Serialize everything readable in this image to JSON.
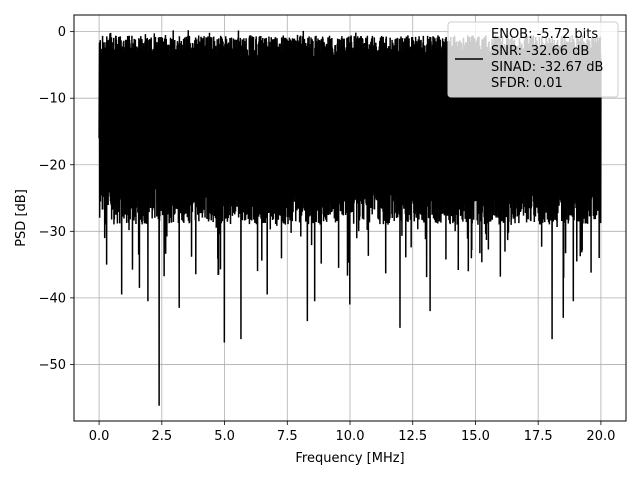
{
  "chart_data": {
    "type": "line",
    "xlabel": "Frequency [MHz]",
    "ylabel": "PSD [dB]",
    "xlim": [
      -1.0,
      21.0
    ],
    "ylim": [
      -58.5,
      2.5
    ],
    "x_ticks": [
      0.0,
      2.5,
      5.0,
      7.5,
      10.0,
      12.5,
      15.0,
      17.5,
      20.0
    ],
    "x_tick_labels": [
      "0.0",
      "2.5",
      "5.0",
      "7.5",
      "10.0",
      "12.5",
      "15.0",
      "17.5",
      "20.0"
    ],
    "y_ticks": [
      0,
      -10,
      -20,
      -30,
      -40,
      -50
    ],
    "y_tick_labels": [
      "0",
      "−10",
      "−20",
      "−30",
      "−40",
      "−50"
    ],
    "grid": true,
    "legend_position": "top-right",
    "series": [
      {
        "color": "#000000",
        "x_range": [
          0.0,
          20.0
        ],
        "typical_band": [
          -26,
          -3
        ],
        "max": 0.2,
        "min": -56.2,
        "notable_dips": [
          {
            "x": 0.3,
            "y": -35
          },
          {
            "x": 0.9,
            "y": -39.5
          },
          {
            "x": 1.6,
            "y": -38.5
          },
          {
            "x": 1.95,
            "y": -40.5
          },
          {
            "x": 2.4,
            "y": -56.2
          },
          {
            "x": 3.2,
            "y": -41.5
          },
          {
            "x": 5.0,
            "y": -46.7
          },
          {
            "x": 5.65,
            "y": -46.2
          },
          {
            "x": 6.7,
            "y": -39.5
          },
          {
            "x": 8.3,
            "y": -43.5
          },
          {
            "x": 8.6,
            "y": -40.5
          },
          {
            "x": 10.0,
            "y": -41
          },
          {
            "x": 12.0,
            "y": -44.5
          },
          {
            "x": 13.2,
            "y": -42
          },
          {
            "x": 18.05,
            "y": -46.2
          },
          {
            "x": 18.5,
            "y": -43
          },
          {
            "x": 18.9,
            "y": -40.5
          }
        ]
      }
    ],
    "legend": {
      "lines": [
        "ENOB: -5.72 bits",
        "SNR: -32.66 dB",
        "SINAD: -32.67 dB",
        "SFDR: 0.01"
      ]
    }
  }
}
